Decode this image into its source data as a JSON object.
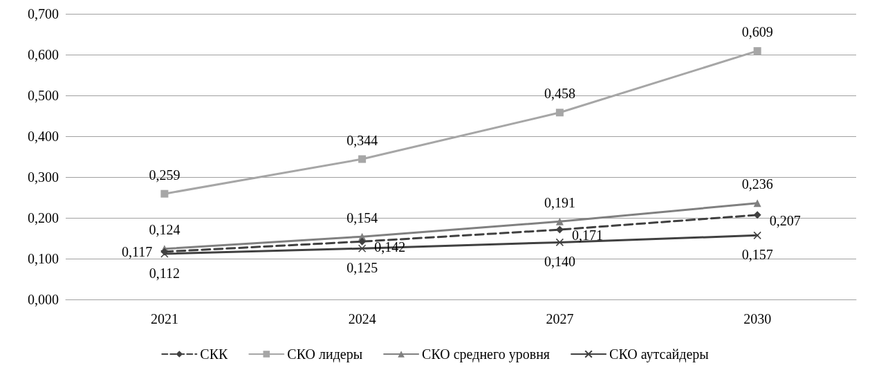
{
  "chart_data": {
    "type": "line",
    "categories": [
      "2021",
      "2024",
      "2027",
      "2030"
    ],
    "series": [
      {
        "name": "СКК",
        "color": "#404040",
        "values": [
          0.117,
          0.142,
          0.171,
          0.207
        ],
        "value_labels": [
          "0,117",
          "0,142",
          "0,171",
          "0,207"
        ],
        "marker": "diamond",
        "line_style": "dashed"
      },
      {
        "name": "СКО лидеры",
        "color": "#a6a6a6",
        "values": [
          0.259,
          0.344,
          0.458,
          0.609
        ],
        "value_labels": [
          "0,259",
          "0,344",
          "0,458",
          "0,609"
        ],
        "marker": "square",
        "line_style": "solid"
      },
      {
        "name": "СКО среднего уровня",
        "color": "#808080",
        "values": [
          0.124,
          0.154,
          0.191,
          0.236
        ],
        "value_labels": [
          "0,124",
          "0,154",
          "0,191",
          "0,236"
        ],
        "marker": "triangle",
        "line_style": "solid"
      },
      {
        "name": "СКО аутсайдеры",
        "color": "#404040",
        "values": [
          0.112,
          0.125,
          0.14,
          0.157
        ],
        "value_labels": [
          "0,112",
          "0,125",
          "0,140",
          "0,157"
        ],
        "marker": "cross",
        "line_style": "solid"
      }
    ],
    "ylim": [
      0,
      0.7
    ],
    "yticks": [
      {
        "value": 0,
        "label": "0,000"
      },
      {
        "value": 0.1,
        "label": "0,100"
      },
      {
        "value": 0.2,
        "label": "0,200"
      },
      {
        "value": 0.3,
        "label": "0,300"
      },
      {
        "value": 0.4,
        "label": "0,400"
      },
      {
        "value": 0.5,
        "label": "0,500"
      },
      {
        "value": 0.6,
        "label": "0,600"
      },
      {
        "value": 0.7,
        "label": "0,700"
      }
    ],
    "grid": "y",
    "legend": "bottom"
  }
}
